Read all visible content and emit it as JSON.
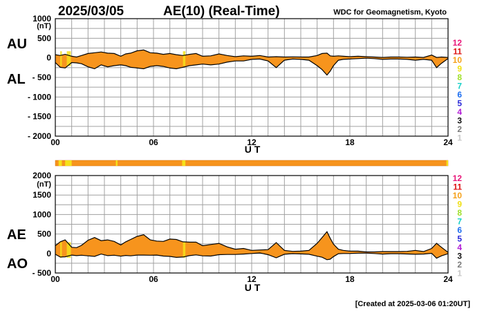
{
  "header": {
    "date": "2025/03/05",
    "title": "AE(10) (Real-Time)",
    "source": "WDC for Geomagnetism, Kyoto"
  },
  "footer": {
    "created": "[Created at 2025-03-06 01:20UT]"
  },
  "legend": {
    "items": [
      {
        "label": "12",
        "color": "#e8177a"
      },
      {
        "label": "11",
        "color": "#dd1111"
      },
      {
        "label": "10",
        "color": "#f5a11a"
      },
      {
        "label": "9",
        "color": "#f0e014"
      },
      {
        "label": "8",
        "color": "#9fe02a"
      },
      {
        "label": "7",
        "color": "#17d0c8"
      },
      {
        "label": "6",
        "color": "#1a6cf0"
      },
      {
        "label": "5",
        "color": "#2a2ad8"
      },
      {
        "label": "4",
        "color": "#b11ad6"
      },
      {
        "label": "3",
        "color": "#111111"
      },
      {
        "label": "2",
        "color": "#7a7a7a"
      },
      {
        "label": "1",
        "color": "#c8c8c8"
      }
    ]
  },
  "colors": {
    "fill": "#f7941d",
    "highlight": "#f5e11a",
    "grid": "#a0a0a0",
    "line": "#000000"
  },
  "station_bar": {
    "base_color": "#f7941d",
    "highlights": [
      [
        0.2,
        0.4
      ],
      [
        0.6,
        1.0
      ],
      [
        3.7,
        3.8
      ],
      [
        7.75,
        7.95
      ],
      [
        23.9,
        24.0
      ]
    ]
  },
  "chart_data": [
    {
      "type": "area",
      "title": "AU / AL",
      "series_upper_label": "AU",
      "series_lower_label": "AL",
      "unit": "(nT)",
      "xlabel": "U T",
      "xlim": [
        0,
        24
      ],
      "ylim": [
        -2000,
        1000
      ],
      "y_ticks": [
        1000,
        500,
        0,
        -500,
        -1000,
        -1500,
        -2000
      ],
      "y_tick_labels": [
        "1000",
        "500",
        "0",
        "- 500",
        "- 1000",
        "- 1500",
        "- 2000"
      ],
      "x_ticks": [
        0,
        6,
        12,
        18,
        24
      ],
      "x_tick_labels": [
        "00",
        "06",
        "12",
        "18",
        "24"
      ],
      "highlight_bands": [
        [
          0.3,
          0.4
        ],
        [
          0.7,
          0.95
        ],
        [
          7.8,
          7.95
        ]
      ],
      "x": [
        0,
        0.3,
        0.6,
        1,
        1.3,
        1.6,
        2,
        2.4,
        2.8,
        3.2,
        3.6,
        4,
        4.3,
        4.6,
        5,
        5.4,
        5.8,
        6.2,
        6.6,
        7,
        7.4,
        7.8,
        8.2,
        8.6,
        9,
        9.5,
        10,
        10.5,
        11,
        11.5,
        12,
        12.5,
        13,
        13.5,
        14,
        14.5,
        15,
        15.5,
        16,
        16.3,
        16.6,
        16.8,
        17,
        17.3,
        17.6,
        18,
        18.5,
        19,
        19.5,
        20,
        20.5,
        21,
        21.5,
        22,
        22.5,
        23,
        23.3,
        23.6,
        24
      ],
      "upper": [
        80,
        60,
        90,
        40,
        20,
        60,
        110,
        130,
        150,
        120,
        110,
        40,
        100,
        120,
        180,
        200,
        130,
        120,
        90,
        110,
        80,
        60,
        90,
        110,
        40,
        50,
        100,
        60,
        30,
        50,
        40,
        60,
        20,
        30,
        20,
        25,
        20,
        20,
        60,
        110,
        120,
        50,
        40,
        50,
        40,
        30,
        40,
        30,
        20,
        10,
        20,
        20,
        15,
        20,
        10,
        70,
        10,
        20,
        10
      ],
      "lower": [
        -120,
        -240,
        -260,
        -120,
        -130,
        -150,
        -230,
        -280,
        -180,
        -230,
        -200,
        -180,
        -200,
        -240,
        -260,
        -280,
        -220,
        -200,
        -220,
        -260,
        -280,
        -240,
        -200,
        -180,
        -160,
        -180,
        -160,
        -110,
        -80,
        -80,
        -40,
        -30,
        -80,
        -250,
        -60,
        -30,
        -40,
        -60,
        -200,
        -300,
        -440,
        -340,
        -200,
        -60,
        -40,
        -30,
        -20,
        -10,
        -20,
        -40,
        -30,
        -30,
        -40,
        -60,
        -40,
        -60,
        -250,
        -140,
        -20
      ]
    },
    {
      "type": "area",
      "title": "AE / AO",
      "series_upper_label": "AE",
      "series_lower_label": "AO",
      "unit": "(nT)",
      "xlabel": "U T",
      "xlim": [
        0,
        24
      ],
      "ylim": [
        -500,
        2000
      ],
      "y_ticks": [
        2000,
        1500,
        1000,
        500,
        0,
        -500
      ],
      "y_tick_labels": [
        "2000",
        "1500",
        "1000",
        "500",
        "0",
        "- 500"
      ],
      "x_ticks": [
        0,
        6,
        12,
        18,
        24
      ],
      "x_tick_labels": [
        "00",
        "06",
        "12",
        "18",
        "24"
      ],
      "highlight_bands": [
        [
          0.3,
          0.4
        ],
        [
          0.7,
          0.95
        ],
        [
          7.8,
          7.95
        ]
      ],
      "x": [
        0,
        0.3,
        0.6,
        1,
        1.3,
        1.6,
        2,
        2.4,
        2.8,
        3.2,
        3.6,
        4,
        4.3,
        4.6,
        5,
        5.4,
        5.8,
        6.2,
        6.6,
        7,
        7.4,
        7.8,
        8.2,
        8.6,
        9,
        9.5,
        10,
        10.5,
        11,
        11.5,
        12,
        12.5,
        13,
        13.5,
        14,
        14.5,
        15,
        15.5,
        16,
        16.3,
        16.6,
        16.8,
        17,
        17.3,
        17.6,
        18,
        18.5,
        19,
        19.5,
        20,
        20.5,
        21,
        21.5,
        22,
        22.5,
        23,
        23.3,
        23.6,
        24
      ],
      "upper": [
        200,
        300,
        350,
        160,
        150,
        210,
        340,
        410,
        330,
        350,
        310,
        220,
        300,
        360,
        440,
        480,
        350,
        320,
        310,
        370,
        360,
        300,
        290,
        290,
        200,
        230,
        260,
        170,
        110,
        130,
        80,
        90,
        100,
        280,
        80,
        55,
        60,
        80,
        260,
        410,
        560,
        390,
        240,
        110,
        80,
        60,
        60,
        40,
        40,
        50,
        50,
        50,
        55,
        80,
        50,
        130,
        260,
        160,
        30
      ],
      "lower": [
        -20,
        -90,
        -85,
        -40,
        -55,
        -45,
        -60,
        -75,
        -15,
        -55,
        -45,
        -70,
        -50,
        -60,
        -40,
        -40,
        -45,
        -40,
        -65,
        -75,
        -100,
        -90,
        -55,
        -35,
        -60,
        -65,
        -30,
        -25,
        -25,
        -15,
        0,
        15,
        -30,
        -110,
        -20,
        -3,
        -10,
        -20,
        -70,
        -95,
        -160,
        -145,
        -80,
        -5,
        0,
        0,
        10,
        10,
        0,
        -15,
        -5,
        -5,
        -13,
        -20,
        -15,
        5,
        -120,
        -60,
        -5
      ]
    }
  ]
}
